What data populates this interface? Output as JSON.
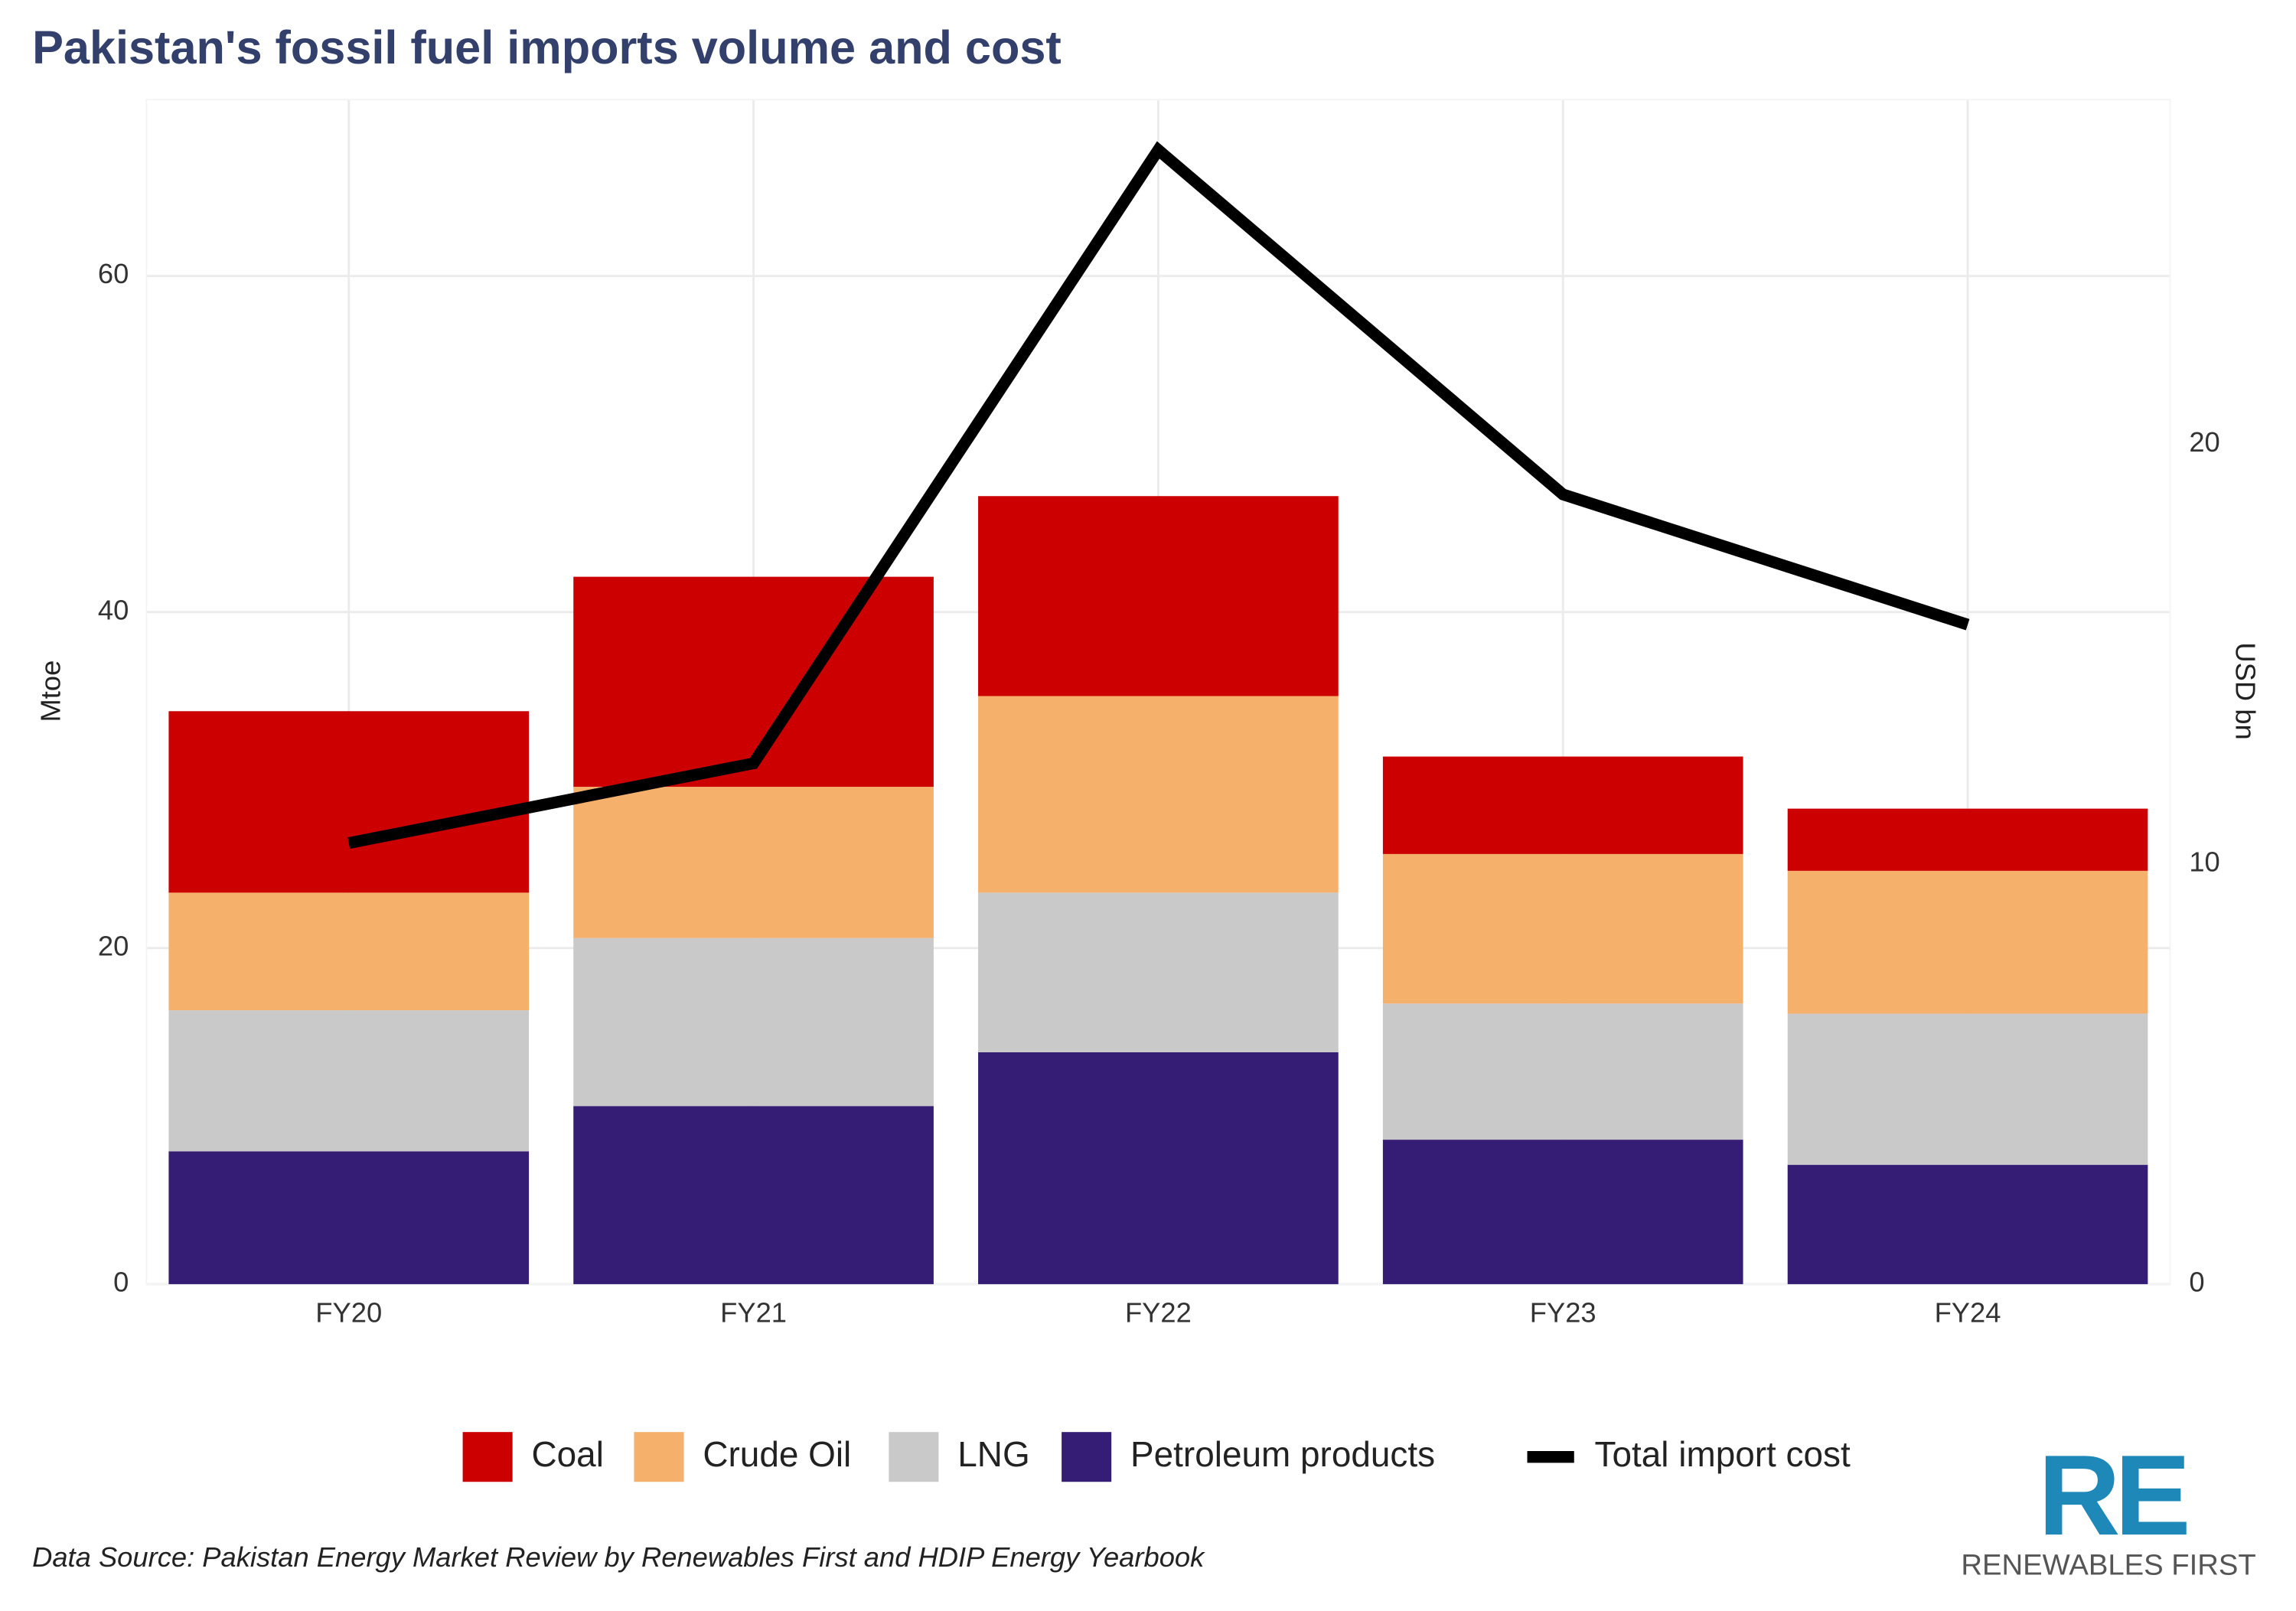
{
  "chart_data": {
    "type": "bar",
    "stacked": true,
    "title": "Pakistan's fossil fuel imports volume and cost",
    "ylabel": "Mtoe",
    "y2label": "USD bn",
    "categories": [
      "FY20",
      "FY21",
      "FY22",
      "FY23",
      "FY24"
    ],
    "series": [
      {
        "name": "Petroleum products",
        "color": "#351c75",
        "values": [
          7.9,
          10.6,
          13.8,
          8.6,
          7.1
        ]
      },
      {
        "name": "LNG",
        "color": "#c9c9c9",
        "values": [
          8.4,
          10.0,
          9.5,
          8.1,
          9.0
        ]
      },
      {
        "name": "Crude Oil",
        "color": "#f5b06c",
        "values": [
          7.0,
          9.0,
          11.7,
          8.9,
          8.5
        ]
      },
      {
        "name": "Coal",
        "color": "#cc0000",
        "values": [
          10.8,
          12.5,
          11.9,
          5.8,
          3.7
        ]
      },
      {
        "name": "Total import cost",
        "color": "#000000",
        "type": "line",
        "axis": "y2",
        "values": [
          10.5,
          12.4,
          27.0,
          18.8,
          15.7
        ]
      }
    ],
    "legend_order": [
      3,
      2,
      1,
      0,
      4
    ],
    "ylim": [
      0,
      70.5
    ],
    "yticks": [
      0,
      20,
      40,
      60
    ],
    "y2lim": [
      0,
      28.2
    ],
    "y2ticks": [
      0,
      10,
      20
    ],
    "grid": true,
    "source": "Data Source: Pakistan Energy Market Review  by Renewables First and HDIP Energy Yearbook",
    "logo": {
      "mark": "RE",
      "text": "RENEWABLES FIRST"
    }
  }
}
